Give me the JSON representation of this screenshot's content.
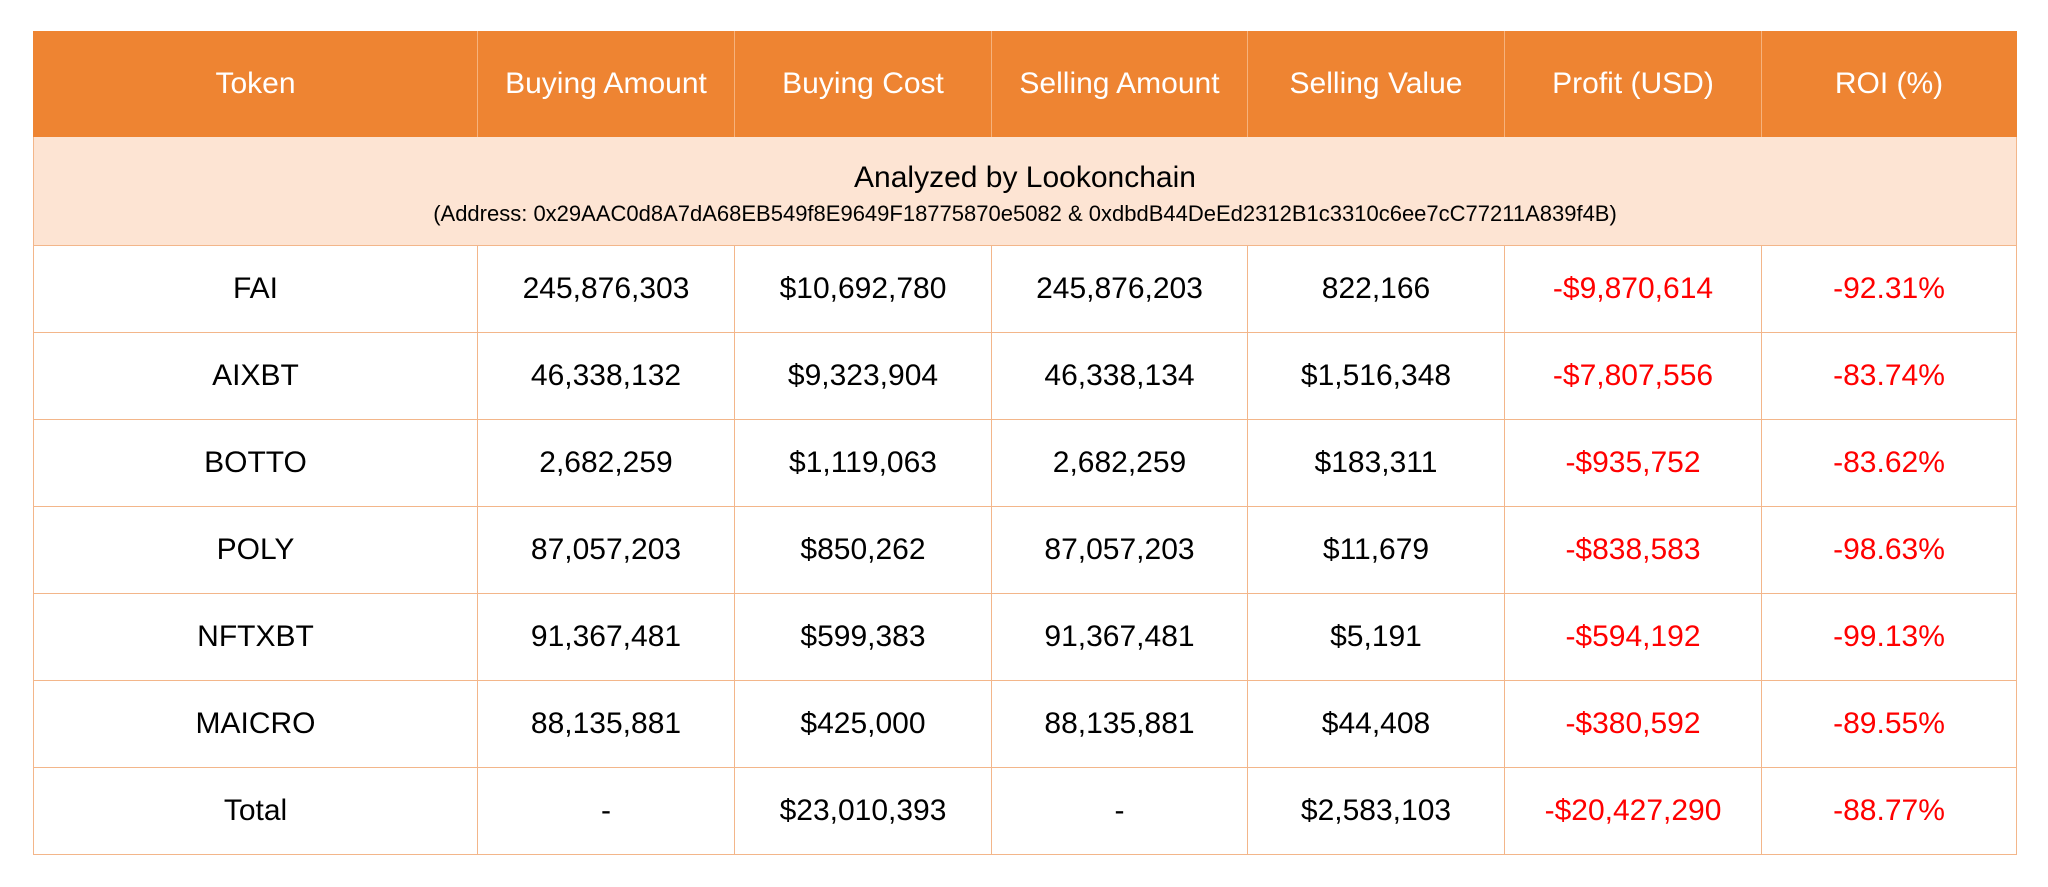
{
  "headers": [
    "Token",
    "Buying Amount",
    "Buying Cost",
    "Selling Amount",
    "Selling Value",
    "Profit (USD)",
    "ROI (%)"
  ],
  "banner": {
    "title": "Analyzed by Lookonchain",
    "subtitle": "(Address: 0x29AAC0d8A7dA68EB549f8E9649F18775870e5082 & 0xdbdB44DeEd2312B1c3310c6ee7cC77211A839f4B)"
  },
  "rows": [
    [
      "FAI",
      "245,876,303",
      "$10,692,780",
      "245,876,203",
      "822,166",
      "-$9,870,614",
      "-92.31%"
    ],
    [
      "AIXBT",
      "46,338,132",
      "$9,323,904",
      "46,338,134",
      "$1,516,348",
      "-$7,807,556",
      "-83.74%"
    ],
    [
      "BOTTO",
      "2,682,259",
      "$1,119,063",
      "2,682,259",
      "$183,311",
      "-$935,752",
      "-83.62%"
    ],
    [
      "POLY",
      "87,057,203",
      "$850,262",
      "87,057,203",
      "$11,679",
      "-$838,583",
      "-98.63%"
    ],
    [
      "NFTXBT",
      "91,367,481",
      "$599,383",
      "91,367,481",
      "$5,191",
      "-$594,192",
      "-99.13%"
    ],
    [
      "MAICRO",
      "88,135,881",
      "$425,000",
      "88,135,881",
      "$44,408",
      "-$380,592",
      "-89.55%"
    ],
    [
      "Total",
      "-",
      "$23,010,393",
      "-",
      "$2,583,103",
      "-$20,427,290",
      "-88.77%"
    ]
  ],
  "colors": {
    "header_bg": "#ee8432",
    "header_text": "#ffffff",
    "banner_bg": "#fde4d3",
    "grid_line": "#f3b68a",
    "negative_text": "#ff0000",
    "text": "#000000"
  }
}
